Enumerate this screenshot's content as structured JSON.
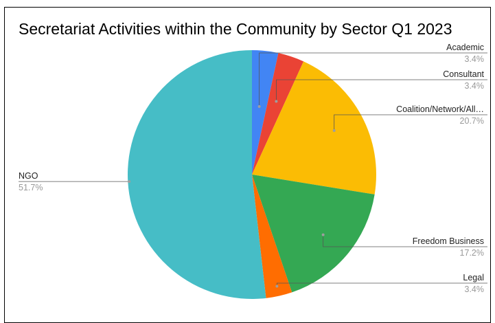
{
  "chart_data": {
    "type": "pie",
    "title": "Secretariat Activities within the Community by Sector Q1 2023",
    "start_angle_deg": 0,
    "direction": "clockwise",
    "slices": [
      {
        "label": "Academic",
        "value": 3.4,
        "value_label": "3.4%",
        "color": "#4285F4"
      },
      {
        "label": "Consultant",
        "value": 3.4,
        "value_label": "3.4%",
        "color": "#EA4335"
      },
      {
        "label": "Coalition/Network/All…",
        "value": 20.7,
        "value_label": "20.7%",
        "color": "#FBBC04"
      },
      {
        "label": "Freedom Business",
        "value": 17.2,
        "value_label": "17.2%",
        "color": "#34A853"
      },
      {
        "label": "Legal",
        "value": 3.4,
        "value_label": "3.4%",
        "color": "#FF6D01"
      },
      {
        "label": "NGO",
        "value": 51.7,
        "value_label": "51.7%",
        "color": "#46BDC6"
      }
    ],
    "legend": "none",
    "labels": "outside-with-leader-lines"
  }
}
